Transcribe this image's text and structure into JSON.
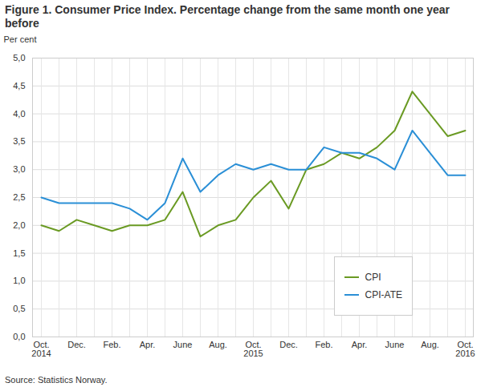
{
  "chart_data": {
    "type": "line",
    "title": "Figure 1. Consumer Price Index. Percentage change from the same month one year before",
    "ylabel": "Per cent",
    "source": "Source: Statistics Norway.",
    "categories": [
      "Oct.\n2014",
      null,
      "Dec.",
      null,
      "Feb.",
      null,
      "Apr.",
      null,
      "June",
      null,
      "Aug.",
      null,
      "Oct.\n2015",
      null,
      "Dec.",
      null,
      "Feb.",
      null,
      "Apr.",
      null,
      "June",
      null,
      "Aug.",
      null,
      "Oct.\n2016"
    ],
    "series": [
      {
        "name": "CPI",
        "color": "#6a9a23",
        "values": [
          2.0,
          1.9,
          2.1,
          2.0,
          1.9,
          2.0,
          2.0,
          2.1,
          2.6,
          1.8,
          2.0,
          2.1,
          2.5,
          2.8,
          2.3,
          3.0,
          3.1,
          3.3,
          3.2,
          3.4,
          3.7,
          4.4,
          4.0,
          3.6,
          3.7
        ]
      },
      {
        "name": "CPI-ATE",
        "color": "#2a8fd6",
        "values": [
          2.5,
          2.4,
          2.4,
          2.4,
          2.4,
          2.3,
          2.1,
          2.4,
          3.2,
          2.6,
          2.9,
          3.1,
          3.0,
          3.1,
          3.0,
          3.0,
          3.4,
          3.3,
          3.3,
          3.2,
          3.0,
          3.7,
          3.3,
          2.9,
          2.9
        ]
      }
    ],
    "ylim": [
      0,
      5
    ],
    "yticks": [
      {
        "value": 0,
        "label": "0,0"
      },
      {
        "value": 0.5,
        "label": "0,5"
      },
      {
        "value": 1,
        "label": "1,0"
      },
      {
        "value": 1.5,
        "label": "1,5"
      },
      {
        "value": 2,
        "label": "2,0"
      },
      {
        "value": 2.5,
        "label": "2,5"
      },
      {
        "value": 3,
        "label": "3,0"
      },
      {
        "value": 3.5,
        "label": "3,5"
      },
      {
        "value": 4,
        "label": "4,0"
      },
      {
        "value": 4.5,
        "label": "4,5"
      },
      {
        "value": 5,
        "label": "5,0"
      }
    ],
    "grid": true,
    "legend": "lower right"
  }
}
